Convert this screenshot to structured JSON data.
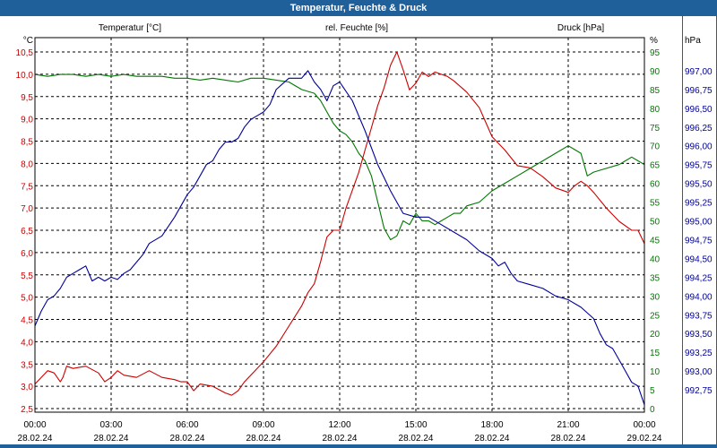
{
  "window": {
    "title": "Temperatur, Feuchte & Druck"
  },
  "colors": {
    "temperature": "#cc0000",
    "humidity": "#007700",
    "pressure": "#000099",
    "titlebar": "#1f5f9a",
    "grid": "#000000"
  },
  "chart_data": {
    "type": "line",
    "title": "Temperatur, Feuchte & Druck",
    "grid": true,
    "x_ticks": [
      {
        "time": "00:00",
        "date": "28.02.24"
      },
      {
        "time": "03:00",
        "date": "28.02.24"
      },
      {
        "time": "06:00",
        "date": "28.02.24"
      },
      {
        "time": "09:00",
        "date": "28.02.24"
      },
      {
        "time": "12:00",
        "date": "28.02.24"
      },
      {
        "time": "15:00",
        "date": "28.02.24"
      },
      {
        "time": "18:00",
        "date": "28.02.24"
      },
      {
        "time": "21:00",
        "date": "28.02.24"
      },
      {
        "time": "00:00",
        "date": "29.02.24"
      }
    ],
    "xlim_hours": [
      0,
      24
    ],
    "axes": {
      "temperature": {
        "label": "Temperatur [°C]",
        "unit": "°C",
        "ylim": [
          2.5,
          10.5
        ],
        "ticks": [
          "2,5",
          "3,0",
          "3,5",
          "4,0",
          "4,5",
          "5,0",
          "5,5",
          "6,0",
          "6,5",
          "7,0",
          "7,5",
          "8,0",
          "8,5",
          "9,0",
          "9,5",
          "10,0",
          "10,5"
        ]
      },
      "humidity": {
        "label": "rel. Feuchte [%]",
        "unit": "%",
        "ylim": [
          0,
          95
        ],
        "ticks": [
          "0",
          "5",
          "10",
          "15",
          "20",
          "25",
          "30",
          "35",
          "40",
          "45",
          "50",
          "55",
          "60",
          "65",
          "70",
          "75",
          "80",
          "85",
          "90",
          "95"
        ]
      },
      "pressure": {
        "label": "Druck [hPa]",
        "unit": "hPa",
        "ylim": [
          992.5,
          997.25
        ],
        "ticks": [
          "992,75",
          "993,00",
          "993,25",
          "993,50",
          "993,75",
          "994,00",
          "994,25",
          "994,50",
          "994,75",
          "995,00",
          "995,25",
          "995,50",
          "995,75",
          "996,00",
          "996,25",
          "996,50",
          "996,75",
          "997,00"
        ]
      }
    },
    "series": [
      {
        "name": "Temperatur [°C]",
        "axis": "temperature",
        "color": "#cc0000",
        "x": [
          0,
          0.5,
          0.75,
          1.0,
          1.1,
          1.25,
          1.5,
          2.0,
          2.5,
          2.75,
          3.0,
          3.25,
          3.5,
          4.0,
          4.5,
          5.0,
          5.5,
          5.75,
          6.0,
          6.25,
          6.5,
          7.0,
          7.5,
          7.75,
          8.0,
          8.25,
          8.5,
          9.0,
          9.5,
          10.0,
          10.5,
          10.75,
          11.0,
          11.25,
          11.5,
          11.75,
          12.0,
          12.25,
          12.5,
          12.75,
          13.0,
          13.25,
          13.5,
          13.75,
          14.0,
          14.25,
          14.5,
          14.75,
          15.0,
          15.25,
          15.5,
          15.75,
          16.0,
          16.25,
          16.5,
          17.0,
          17.5,
          18.0,
          18.5,
          19.0,
          19.5,
          20.0,
          20.5,
          21.0,
          21.25,
          21.5,
          21.75,
          22.0,
          22.5,
          23.0,
          23.5,
          23.75,
          24.0
        ],
        "y": [
          3.05,
          3.35,
          3.3,
          3.1,
          3.2,
          3.45,
          3.4,
          3.45,
          3.3,
          3.1,
          3.2,
          3.35,
          3.25,
          3.2,
          3.35,
          3.2,
          3.15,
          3.1,
          3.1,
          2.9,
          3.05,
          3.0,
          2.85,
          2.8,
          2.9,
          3.1,
          3.25,
          3.55,
          3.9,
          4.35,
          4.8,
          5.1,
          5.3,
          5.8,
          6.35,
          6.5,
          6.5,
          7.0,
          7.4,
          7.8,
          8.3,
          8.8,
          9.3,
          9.7,
          10.2,
          10.5,
          10.1,
          9.65,
          9.8,
          10.05,
          9.95,
          10.05,
          10.0,
          9.95,
          9.85,
          9.6,
          9.25,
          8.6,
          8.3,
          7.95,
          7.9,
          7.7,
          7.45,
          7.35,
          7.5,
          7.6,
          7.5,
          7.35,
          7.0,
          6.7,
          6.5,
          6.5,
          6.2
        ]
      },
      {
        "name": "rel. Feuchte [%]",
        "axis": "humidity",
        "color": "#007700",
        "x": [
          0,
          0.5,
          1.0,
          1.5,
          2.0,
          2.5,
          3.0,
          3.5,
          4.0,
          4.5,
          5.0,
          5.5,
          6.0,
          6.5,
          7.0,
          7.5,
          8.0,
          8.5,
          9.0,
          9.5,
          10.0,
          10.5,
          11.0,
          11.25,
          11.5,
          11.75,
          12.0,
          12.25,
          12.5,
          12.75,
          13.0,
          13.25,
          13.5,
          13.75,
          14.0,
          14.25,
          14.5,
          14.75,
          15.0,
          15.25,
          15.5,
          15.75,
          16.0,
          16.25,
          16.5,
          16.75,
          17.0,
          17.5,
          18.0,
          18.5,
          19.0,
          19.5,
          20.0,
          20.5,
          21.0,
          21.25,
          21.5,
          21.75,
          22.0,
          22.5,
          23.0,
          23.25,
          23.5,
          23.75,
          24.0
        ],
        "y": [
          89,
          88.5,
          89,
          89,
          88.5,
          89,
          88.5,
          89,
          88.5,
          88.5,
          88.5,
          88,
          88,
          87.5,
          88,
          87.5,
          87,
          88,
          88,
          87.5,
          87,
          85,
          84,
          82,
          79,
          76,
          74,
          73,
          71,
          68,
          66,
          62,
          55,
          48,
          45,
          46,
          50,
          49,
          52,
          50,
          50,
          49,
          50,
          51,
          52,
          52,
          54,
          55,
          58,
          60,
          62,
          64,
          66,
          68,
          70,
          69,
          68,
          62,
          63,
          64,
          65,
          66,
          67,
          66,
          65
        ]
      },
      {
        "name": "Druck [hPa]",
        "axis": "pressure",
        "color": "#000099",
        "x": [
          0,
          0.25,
          0.5,
          0.75,
          1.0,
          1.25,
          1.5,
          1.75,
          2.0,
          2.25,
          2.5,
          2.75,
          3.0,
          3.25,
          3.5,
          3.75,
          4.0,
          4.25,
          4.5,
          5.0,
          5.5,
          6.0,
          6.25,
          6.5,
          6.75,
          7.0,
          7.25,
          7.5,
          7.75,
          8.0,
          8.25,
          8.5,
          8.75,
          9.0,
          9.25,
          9.5,
          10.0,
          10.5,
          10.75,
          11.0,
          11.25,
          11.5,
          11.75,
          12.0,
          12.5,
          13.0,
          13.5,
          14.0,
          14.5,
          15.0,
          15.5,
          16.0,
          16.5,
          17.0,
          17.5,
          18.0,
          18.25,
          18.5,
          18.75,
          19.0,
          19.5,
          20.0,
          20.5,
          21.0,
          21.5,
          22.0,
          22.25,
          22.5,
          22.75,
          23.0,
          23.25,
          23.5,
          23.75,
          24.0
        ],
        "y": [
          993.6,
          993.8,
          993.95,
          994.0,
          994.1,
          994.25,
          994.3,
          994.35,
          994.4,
          994.2,
          994.25,
          994.2,
          994.25,
          994.22,
          994.3,
          994.35,
          994.45,
          994.55,
          994.7,
          994.8,
          995.05,
          995.35,
          995.45,
          995.6,
          995.75,
          995.8,
          995.95,
          996.05,
          996.05,
          996.1,
          996.25,
          996.35,
          996.4,
          996.45,
          996.55,
          996.75,
          996.9,
          996.9,
          997.0,
          996.85,
          996.75,
          996.6,
          996.8,
          996.85,
          996.6,
          996.2,
          995.75,
          995.4,
          995.1,
          995.05,
          995.05,
          994.95,
          994.85,
          994.75,
          994.6,
          994.5,
          994.4,
          994.45,
          994.3,
          994.2,
          994.15,
          994.1,
          994.0,
          993.95,
          993.85,
          993.7,
          993.5,
          993.35,
          993.3,
          993.15,
          993.0,
          992.85,
          992.8,
          992.55
        ]
      }
    ]
  }
}
